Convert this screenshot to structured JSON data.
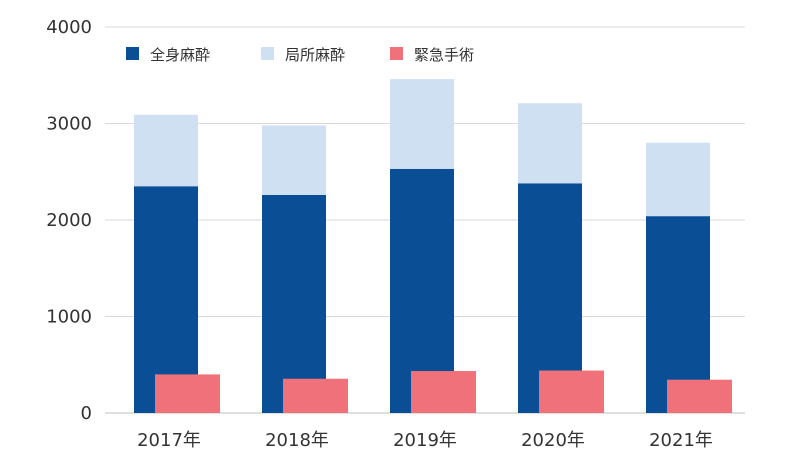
{
  "chart_data": {
    "type": "bar",
    "categories": [
      "2017年",
      "2018年",
      "2019年",
      "2020年",
      "2021年"
    ],
    "series": [
      {
        "name": "全身麻酔",
        "values": [
          2350,
          2260,
          2530,
          2380,
          2040
        ],
        "color": "#0a4f96",
        "stack": "main"
      },
      {
        "name": "局所麻酔",
        "values": [
          740,
          720,
          930,
          830,
          760
        ],
        "color": "#cfe0f2",
        "stack": "main"
      },
      {
        "name": "緊急手術",
        "values": [
          400,
          355,
          435,
          440,
          345
        ],
        "color": "#f0717a",
        "stack": "emergency"
      }
    ],
    "y_ticks": [
      "0",
      "1000",
      "2000",
      "3000",
      "4000"
    ],
    "ylim": [
      0,
      4000
    ],
    "grid": true,
    "legend_position": "top-left"
  }
}
